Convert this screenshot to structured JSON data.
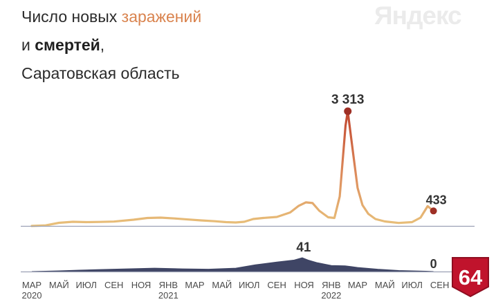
{
  "header": {
    "line1_prefix": "Число новых ",
    "line1_accent": "заражений",
    "line2_prefix": "и ",
    "line2_bold": "смертей",
    "line2_suffix": ",",
    "line3": "Саратовская область"
  },
  "watermark": "Яндекс",
  "badge": "64",
  "colors": {
    "cases_low": "#e8c07a",
    "cases_high": "#c0452e",
    "cases_peak": "#9e2f25",
    "deaths": "#3f4565",
    "axis": "#9aa0b4",
    "badge_red": "#c0132c"
  },
  "chart_data": {
    "type": "area",
    "x_start": "2020-03-01",
    "x_end": "2022-09-30",
    "x_ticks": [
      {
        "label": "МАР",
        "sub": "2020",
        "date": "2020-03-01"
      },
      {
        "label": "МАЙ",
        "sub": "",
        "date": "2020-05-01"
      },
      {
        "label": "ИЮЛ",
        "sub": "",
        "date": "2020-07-01"
      },
      {
        "label": "СЕН",
        "sub": "",
        "date": "2020-09-01"
      },
      {
        "label": "НОЯ",
        "sub": "",
        "date": "2020-11-01"
      },
      {
        "label": "ЯНВ",
        "sub": "2021",
        "date": "2021-01-01"
      },
      {
        "label": "МАР",
        "sub": "",
        "date": "2021-03-01"
      },
      {
        "label": "МАЙ",
        "sub": "",
        "date": "2021-05-01"
      },
      {
        "label": "ИЮЛ",
        "sub": "",
        "date": "2021-07-01"
      },
      {
        "label": "СЕН",
        "sub": "",
        "date": "2021-09-01"
      },
      {
        "label": "НОЯ",
        "sub": "",
        "date": "2021-11-01"
      },
      {
        "label": "ЯНВ",
        "sub": "2022",
        "date": "2022-01-01"
      },
      {
        "label": "МАР",
        "sub": "",
        "date": "2022-03-01"
      },
      {
        "label": "МАЙ",
        "sub": "",
        "date": "2022-05-01"
      },
      {
        "label": "ИЮЛ",
        "sub": "",
        "date": "2022-07-01"
      },
      {
        "label": "СЕН",
        "sub": "",
        "date": "2022-09-01"
      }
    ],
    "series": [
      {
        "key": "cases",
        "ylim": [
          0,
          3313
        ],
        "points": [
          [
            "2020-03-01",
            0
          ],
          [
            "2020-04-01",
            15
          ],
          [
            "2020-05-01",
            90
          ],
          [
            "2020-06-01",
            120
          ],
          [
            "2020-07-01",
            110
          ],
          [
            "2020-08-01",
            115
          ],
          [
            "2020-09-01",
            125
          ],
          [
            "2020-10-15",
            180
          ],
          [
            "2020-11-15",
            230
          ],
          [
            "2020-12-15",
            240
          ],
          [
            "2021-01-15",
            215
          ],
          [
            "2021-02-15",
            185
          ],
          [
            "2021-03-15",
            160
          ],
          [
            "2021-04-15",
            135
          ],
          [
            "2021-05-10",
            110
          ],
          [
            "2021-06-01",
            100
          ],
          [
            "2021-06-20",
            120
          ],
          [
            "2021-07-10",
            200
          ],
          [
            "2021-08-01",
            230
          ],
          [
            "2021-09-01",
            260
          ],
          [
            "2021-10-01",
            390
          ],
          [
            "2021-10-20",
            580
          ],
          [
            "2021-11-05",
            680
          ],
          [
            "2021-11-20",
            660
          ],
          [
            "2021-12-05",
            440
          ],
          [
            "2021-12-25",
            250
          ],
          [
            "2022-01-08",
            230
          ],
          [
            "2022-01-20",
            850
          ],
          [
            "2022-01-26",
            1800
          ],
          [
            "2022-02-02",
            2900
          ],
          [
            "2022-02-07",
            3313
          ],
          [
            "2022-02-13",
            2700
          ],
          [
            "2022-02-20",
            2000
          ],
          [
            "2022-03-01",
            1100
          ],
          [
            "2022-03-12",
            600
          ],
          [
            "2022-03-25",
            350
          ],
          [
            "2022-04-10",
            200
          ],
          [
            "2022-05-01",
            130
          ],
          [
            "2022-06-01",
            85
          ],
          [
            "2022-07-01",
            110
          ],
          [
            "2022-07-20",
            240
          ],
          [
            "2022-08-05",
            570
          ],
          [
            "2022-08-18",
            433
          ]
        ],
        "peak": {
          "date": "2022-02-07",
          "label": "3 313"
        },
        "last": {
          "date": "2022-08-18",
          "label": "433"
        }
      },
      {
        "key": "deaths",
        "ylim": [
          0,
          41
        ],
        "points": [
          [
            "2020-03-01",
            0
          ],
          [
            "2020-05-01",
            2
          ],
          [
            "2020-06-15",
            4
          ],
          [
            "2020-08-01",
            6
          ],
          [
            "2020-10-01",
            8
          ],
          [
            "2020-12-01",
            10
          ],
          [
            "2021-02-01",
            8
          ],
          [
            "2021-04-01",
            7
          ],
          [
            "2021-06-01",
            10
          ],
          [
            "2021-07-15",
            20
          ],
          [
            "2021-09-01",
            28
          ],
          [
            "2021-10-10",
            34
          ],
          [
            "2021-10-28",
            41
          ],
          [
            "2021-11-10",
            34
          ],
          [
            "2021-12-01",
            26
          ],
          [
            "2022-01-01",
            18
          ],
          [
            "2022-02-01",
            17
          ],
          [
            "2022-03-01",
            12
          ],
          [
            "2022-04-15",
            7
          ],
          [
            "2022-06-01",
            3
          ],
          [
            "2022-08-01",
            1
          ],
          [
            "2022-08-18",
            0
          ]
        ],
        "peak": {
          "date": "2021-10-28",
          "label": "41"
        },
        "last": {
          "date": "2022-08-18",
          "label": "0"
        }
      }
    ]
  }
}
